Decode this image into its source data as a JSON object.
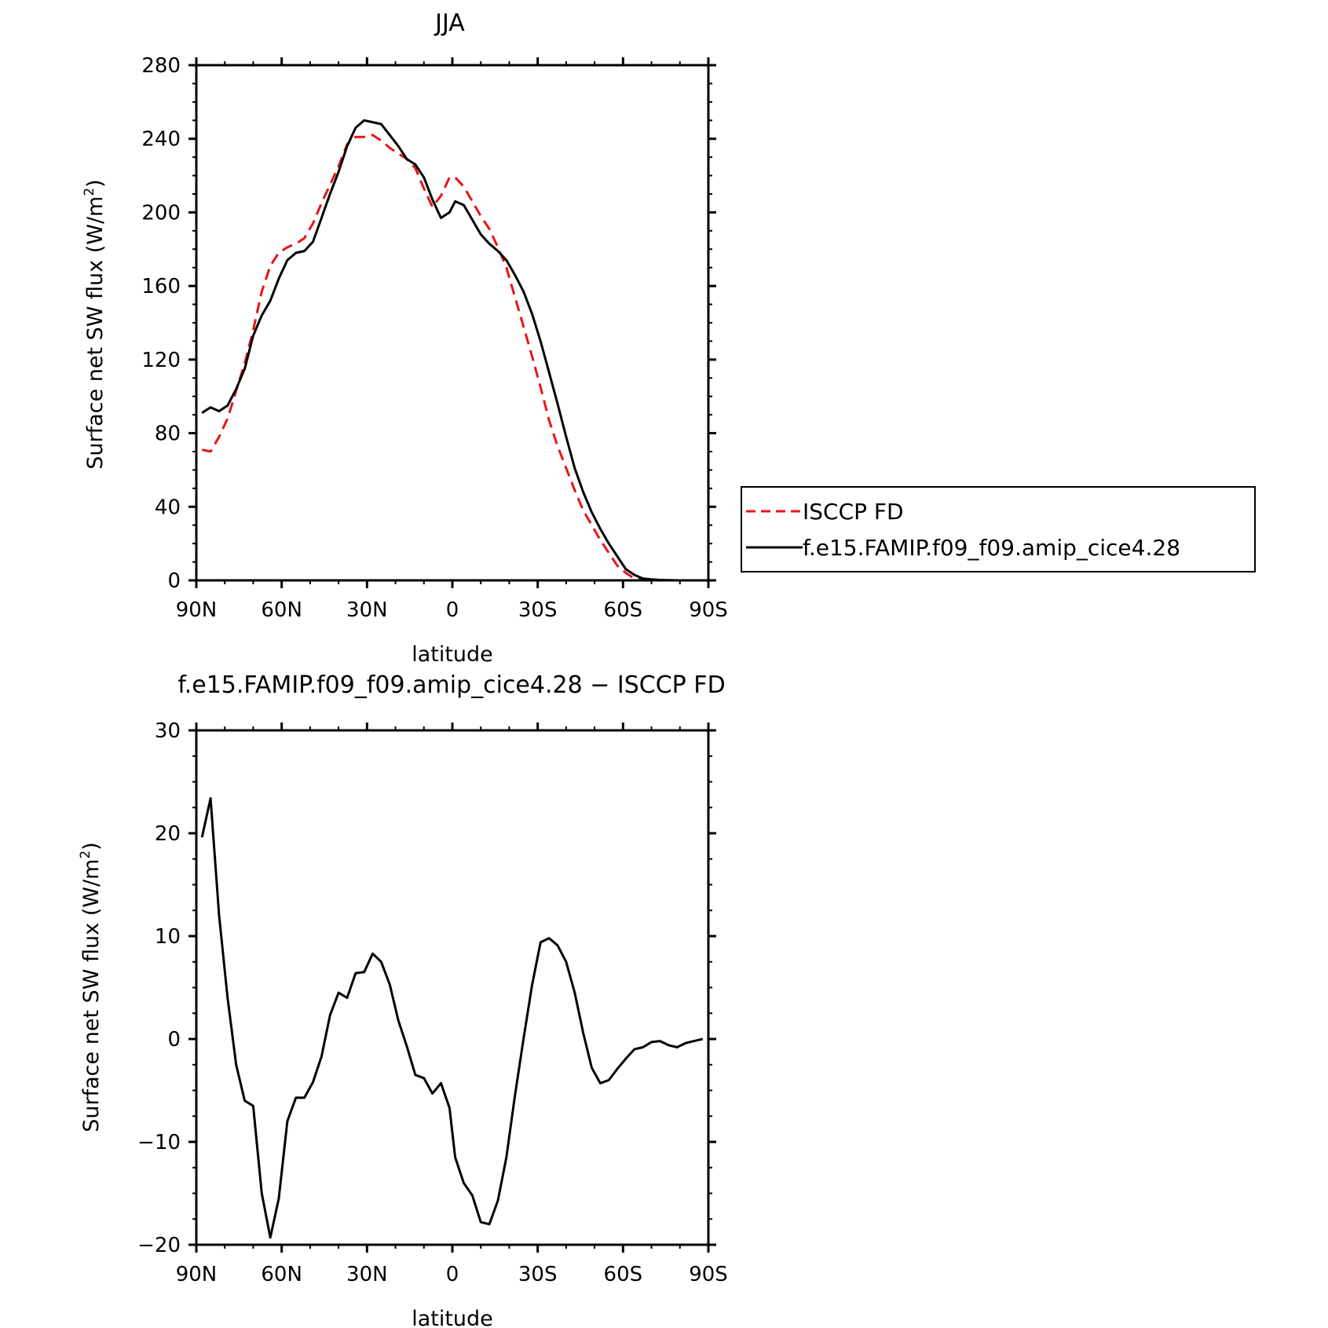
{
  "chart_data": [
    {
      "type": "line",
      "title": "JJA",
      "xlabel": "latitude",
      "ylabel_main": "Surface net SW flux (W/m",
      "ylabel_sup": "2",
      "ylabel_close": ")",
      "xlim": [
        90,
        -90
      ],
      "ylim": [
        0,
        280
      ],
      "xticks": [
        90,
        60,
        30,
        0,
        -30,
        -60,
        -90
      ],
      "xtick_labels": [
        "90N",
        "60N",
        "30N",
        "0",
        "30S",
        "60S",
        "90S"
      ],
      "yticks": [
        0,
        40,
        80,
        120,
        160,
        200,
        240,
        280
      ],
      "ytick_labels": [
        "0",
        "40",
        "80",
        "120",
        "160",
        "200",
        "240",
        "280"
      ],
      "grid": false,
      "legend_position": "right",
      "series": [
        {
          "name": "ISCCP FD",
          "color": "#e8141b",
          "style": "dashed",
          "x": [
            88,
            85,
            82,
            79,
            76,
            73,
            70,
            67,
            64,
            61,
            58,
            55,
            52,
            49,
            46,
            43,
            40,
            37,
            34,
            31,
            28,
            25,
            22,
            19,
            16,
            13,
            10,
            7,
            4,
            1,
            -1,
            -4,
            -7,
            -10,
            -13,
            -16,
            -19,
            -22,
            -25,
            -28,
            -31,
            -34,
            -37,
            -40,
            -43,
            -46,
            -49,
            -52,
            -55,
            -58,
            -61,
            -64,
            -67,
            -70,
            -73,
            -76,
            -79,
            -82,
            -85,
            -88
          ],
          "y": [
            71,
            70,
            78,
            88,
            103,
            118,
            136,
            157,
            171,
            178,
            181,
            183,
            186,
            194,
            205,
            215,
            225,
            237,
            241,
            241,
            242,
            239,
            235,
            232,
            229,
            224,
            213,
            203,
            209,
            219,
            219,
            214,
            206,
            198,
            191,
            181,
            170,
            154,
            138,
            122,
            105,
            87,
            73,
            61,
            49,
            38,
            30,
            22,
            15,
            8,
            4,
            1,
            0.5,
            0.2,
            0.1,
            0,
            0,
            0,
            0,
            0
          ]
        },
        {
          "name": "f.e15.FAMIP.f09_f09.amip_cice4.28",
          "color": "#000000",
          "style": "solid",
          "x": [
            88,
            85,
            82,
            79,
            76,
            73,
            70,
            67,
            64,
            61,
            58,
            55,
            52,
            49,
            46,
            43,
            40,
            37,
            34,
            31,
            28,
            25,
            22,
            19,
            16,
            13,
            10,
            7,
            4,
            1,
            -1,
            -4,
            -7,
            -10,
            -13,
            -16,
            -19,
            -22,
            -25,
            -28,
            -31,
            -34,
            -37,
            -40,
            -43,
            -46,
            -49,
            -52,
            -55,
            -58,
            -61,
            -64,
            -67,
            -70,
            -73,
            -76,
            -79,
            -82,
            -85,
            -88
          ],
          "y": [
            91,
            94,
            92,
            95,
            104,
            115,
            133,
            144,
            152,
            164,
            174,
            178,
            179,
            184,
            197,
            210,
            222,
            236,
            246,
            250,
            249,
            248,
            242,
            236,
            229,
            226,
            219,
            207,
            197,
            200,
            206,
            204,
            196,
            188,
            183,
            179,
            174,
            166,
            157,
            145,
            130,
            113,
            96,
            78,
            61,
            48,
            37,
            28,
            20,
            13,
            6,
            3,
            1,
            0.5,
            0.2,
            0.1,
            0,
            0,
            0,
            0
          ]
        }
      ]
    },
    {
      "type": "line",
      "title": "f.e15.FAMIP.f09_f09.amip_cice4.28 − ISCCP FD",
      "xlabel": "latitude",
      "ylabel_main": "Surface net SW flux (W/m",
      "ylabel_sup": "2",
      "ylabel_close": ")",
      "xlim": [
        90,
        -90
      ],
      "ylim": [
        -20,
        30
      ],
      "xticks": [
        90,
        60,
        30,
        0,
        -30,
        -60,
        -90
      ],
      "xtick_labels": [
        "90N",
        "60N",
        "30N",
        "0",
        "30S",
        "60S",
        "90S"
      ],
      "yticks": [
        -20,
        -10,
        0,
        10,
        20,
        30
      ],
      "ytick_labels": [
        "−20",
        "−10",
        "0",
        "10",
        "20",
        "30"
      ],
      "grid": false,
      "series": [
        {
          "color": "#000000",
          "style": "solid",
          "x": [
            88,
            85,
            82,
            79,
            76,
            73,
            70,
            67,
            64,
            61,
            58,
            55,
            52,
            49,
            46,
            43,
            40,
            37,
            34,
            31,
            28,
            25,
            22,
            19,
            16,
            13,
            10,
            7,
            4,
            1,
            -1,
            -4,
            -7,
            -10,
            -13,
            -16,
            -19,
            -22,
            -25,
            -28,
            -31,
            -34,
            -37,
            -40,
            -43,
            -46,
            -49,
            -52,
            -55,
            -58,
            -61,
            -64,
            -67,
            -70,
            -73,
            -76,
            -79,
            -82,
            -85,
            -88
          ],
          "y": [
            19.6,
            23.4,
            12,
            4,
            -2.5,
            -6,
            -6.5,
            -15,
            -19.3,
            -15.5,
            -8,
            -5.7,
            -5.7,
            -4.2,
            -1.7,
            2.3,
            4.5,
            4,
            6.4,
            6.5,
            8.3,
            7.5,
            5.3,
            1.8,
            -0.7,
            -3.5,
            -3.8,
            -5.3,
            -4.3,
            -6.7,
            -11.5,
            -14,
            -15.2,
            -17.8,
            -18,
            -15.7,
            -11.5,
            -5.5,
            0,
            5.2,
            9.4,
            9.8,
            9.1,
            7.5,
            4.5,
            0.6,
            -2.8,
            -4.3,
            -4.0,
            -2.9,
            -1.9,
            -1.0,
            -0.8,
            -0.3,
            -0.2,
            -0.6,
            -0.8,
            -0.4,
            -0.2,
            0.0
          ]
        }
      ]
    }
  ]
}
